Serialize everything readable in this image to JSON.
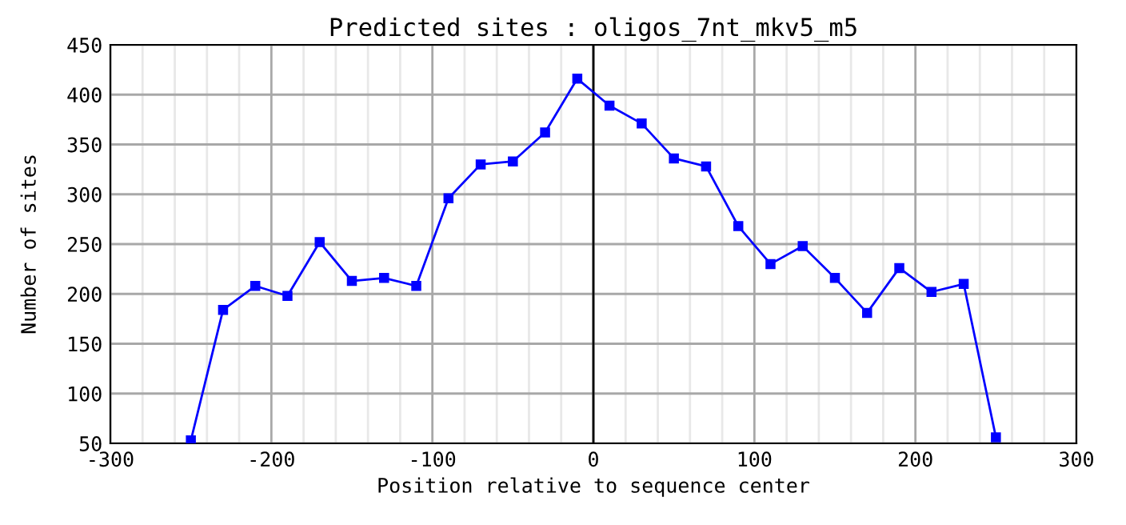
{
  "chart_data": {
    "type": "line",
    "title": "Predicted sites : oligos_7nt_mkv5_m5",
    "xlabel": "Position relative to sequence center",
    "ylabel": "Number of sites",
    "x": [
      -250,
      -230,
      -210,
      -190,
      -170,
      -150,
      -130,
      -110,
      -90,
      -70,
      -50,
      -30,
      -10,
      10,
      30,
      50,
      70,
      90,
      110,
      130,
      150,
      170,
      190,
      210,
      230,
      250
    ],
    "series": [
      {
        "color": "#0000ff",
        "values": [
          53,
          184,
          208,
          198,
          252,
          213,
          216,
          208,
          296,
          330,
          333,
          362,
          416,
          389,
          371,
          336,
          328,
          268,
          230,
          248,
          216,
          181,
          226,
          202,
          210,
          56
        ]
      }
    ],
    "xlim": [
      -300,
      300
    ],
    "ylim": [
      50,
      450
    ],
    "xticks": [
      -300,
      {
        "value": -280,
        "label": null
      },
      {
        "value": -260,
        "label": null
      },
      {
        "value": -240,
        "label": null
      },
      {
        "value": -220,
        "label": null
      },
      -200,
      {
        "value": -180,
        "label": null
      },
      {
        "value": -160,
        "label": null
      },
      {
        "value": -140,
        "label": null
      },
      {
        "value": -120,
        "label": null
      },
      -100,
      {
        "value": -80,
        "label": null
      },
      {
        "value": -60,
        "label": null
      },
      {
        "value": -40,
        "label": null
      },
      {
        "value": -20,
        "label": null
      },
      0,
      {
        "value": 20,
        "label": null
      },
      {
        "value": 40,
        "label": null
      },
      {
        "value": 60,
        "label": null
      },
      {
        "value": 80,
        "label": null
      },
      100,
      {
        "value": 120,
        "label": null
      },
      {
        "value": 140,
        "label": null
      },
      {
        "value": 160,
        "label": null
      },
      {
        "value": 180,
        "label": null
      },
      200,
      {
        "value": 220,
        "label": null
      },
      {
        "value": 240,
        "label": null
      },
      {
        "value": 260,
        "label": null
      },
      {
        "value": 280,
        "label": null
      },
      300
    ],
    "yticks": [
      50,
      100,
      150,
      200,
      250,
      300,
      350,
      400,
      450
    ],
    "ref_lines": [
      {
        "axis": "x",
        "value": 0,
        "color": "#000000"
      }
    ],
    "grid": true,
    "marker": "square",
    "line_style": "solid",
    "legend": false
  }
}
